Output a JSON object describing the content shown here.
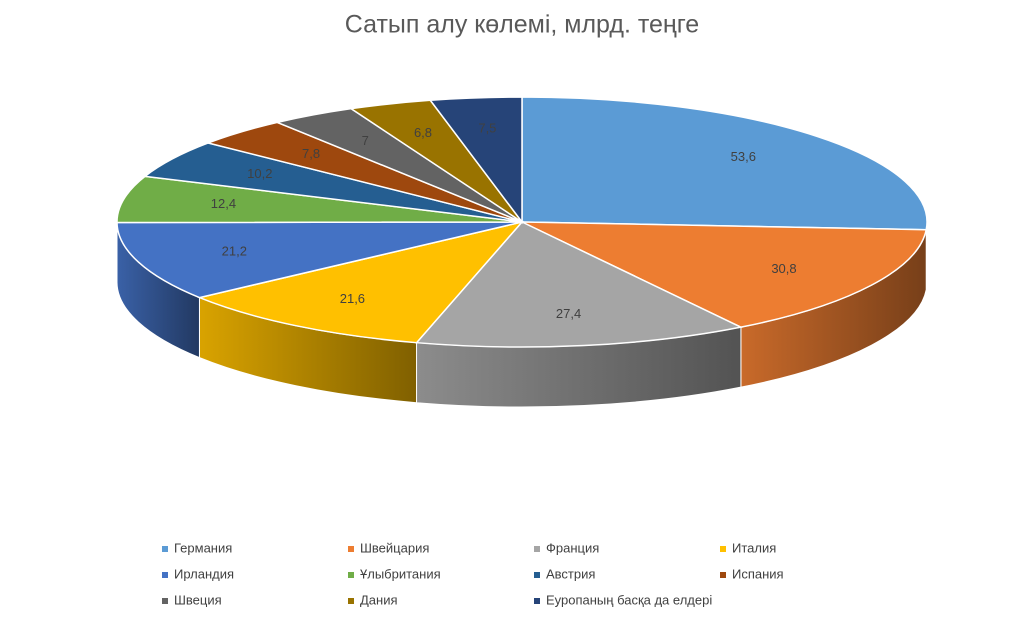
{
  "chart_data": {
    "type": "pie3d",
    "title": "Сатып алу көлемі, млрд. теңге",
    "categories": [
      "Германия",
      "Швейцария",
      "Франция",
      "Италия",
      "Ирландия",
      "Ұлыбритания",
      "Австрия",
      "Испания",
      "Швеция",
      "Дания",
      "Еуропаның басқа да елдері"
    ],
    "values": [
      53.6,
      30.8,
      27.4,
      21.6,
      21.2,
      12.4,
      10.2,
      7.8,
      7,
      6.8,
      7.5
    ],
    "value_labels": [
      "53,6",
      "30,8",
      "27,4",
      "21,6",
      "21,2",
      "12,4",
      "10,2",
      "7,8",
      "7",
      "6,8",
      "7,5"
    ],
    "colors": [
      "#5b9bd5",
      "#ed7d31",
      "#a5a5a5",
      "#ffc000",
      "#4472c4",
      "#70ad47",
      "#255e91",
      "#9e480e",
      "#636363",
      "#997300",
      "#264478"
    ],
    "legend": "bottom"
  }
}
